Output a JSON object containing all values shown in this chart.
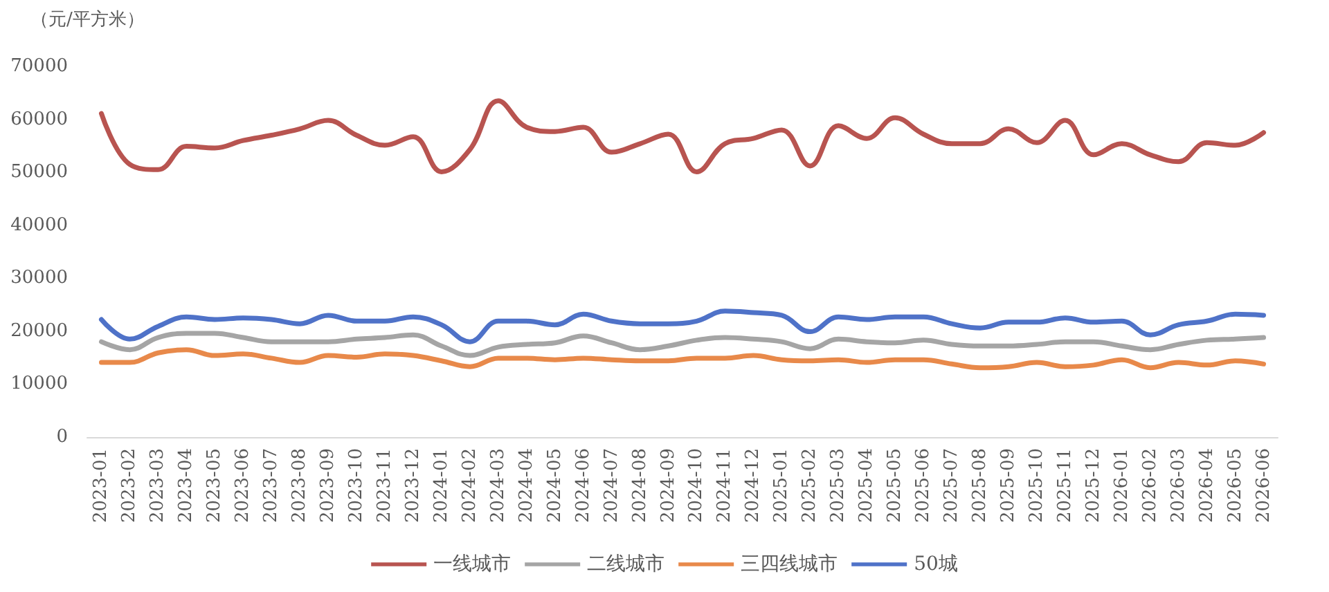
{
  "chart_data": {
    "type": "line",
    "ylabel": "（元/平方米）",
    "categories": [
      "2023-01",
      "2023-02",
      "2023-03",
      "2023-04",
      "2023-05",
      "2023-06",
      "2023-07",
      "2023-08",
      "2023-09",
      "2023-10",
      "2023-11",
      "2023-12",
      "2024-01",
      "2024-02",
      "2024-03",
      "2024-04",
      "2024-05",
      "2024-06",
      "2024-07",
      "2024-08",
      "2024-09",
      "2024-10",
      "2024-11",
      "2024-12",
      "2025-01",
      "2025-02",
      "2025-03",
      "2025-04",
      "2025-05",
      "2025-06",
      "2025-07",
      "2025-08",
      "2025-09",
      "2025-10",
      "2025-11",
      "2025-12",
      "2026-01",
      "2026-02",
      "2026-03",
      "2026-04",
      "2026-05",
      "2026-06"
    ],
    "series": [
      {
        "name": "一线城市",
        "color": "#b85450",
        "values": [
          61100,
          51500,
          50500,
          54900,
          54600,
          56000,
          57000,
          58200,
          59800,
          57000,
          55100,
          56700,
          50100,
          54300,
          63500,
          58500,
          57700,
          58500,
          53800,
          55400,
          57200,
          50100,
          55400,
          56400,
          58000,
          51200,
          58800,
          56400,
          60300,
          57200,
          55400,
          55400,
          58200,
          55600,
          59800,
          53300,
          55400,
          53300,
          52000,
          55600,
          55100,
          57500
        ]
      },
      {
        "name": "二线城市",
        "color": "#a5a5a5",
        "values": [
          18000,
          16500,
          18800,
          19600,
          19600,
          18800,
          18000,
          18000,
          18000,
          18500,
          18800,
          19300,
          17200,
          15400,
          17000,
          17500,
          17800,
          19100,
          17800,
          16500,
          17200,
          18300,
          18800,
          18500,
          18000,
          16700,
          18500,
          18000,
          17800,
          18300,
          17500,
          17200,
          17200,
          17500,
          18000,
          18000,
          17200,
          16500,
          17500,
          18300,
          18500,
          18800
        ]
      },
      {
        "name": "三四线城市",
        "color": "#e8894a",
        "values": [
          14100,
          14100,
          15900,
          16500,
          15400,
          15700,
          14900,
          14100,
          15400,
          15100,
          15700,
          15400,
          14400,
          13300,
          14900,
          14900,
          14600,
          14900,
          14600,
          14400,
          14400,
          14900,
          14900,
          15400,
          14600,
          14400,
          14600,
          14100,
          14600,
          14600,
          13800,
          13100,
          13300,
          14100,
          13300,
          13600,
          14600,
          13100,
          14100,
          13600,
          14400,
          13800
        ]
      },
      {
        "name": "50城",
        "color": "#4f72c8",
        "values": [
          22200,
          18500,
          20900,
          22700,
          22200,
          22500,
          22200,
          21400,
          23000,
          21900,
          21900,
          22700,
          21200,
          18000,
          21900,
          21900,
          21200,
          23200,
          21900,
          21400,
          21400,
          21900,
          23800,
          23500,
          23000,
          19900,
          22700,
          22200,
          22700,
          22700,
          21400,
          20600,
          21700,
          21700,
          22500,
          21700,
          21900,
          19300,
          21200,
          21900,
          23200,
          23000
        ]
      }
    ],
    "ylim": [
      0,
      70000
    ],
    "yticks": [
      0,
      10000,
      20000,
      30000,
      40000,
      50000,
      60000,
      70000
    ],
    "grid": false,
    "legend": "bottom",
    "marker": "none",
    "line_style": "solid"
  }
}
